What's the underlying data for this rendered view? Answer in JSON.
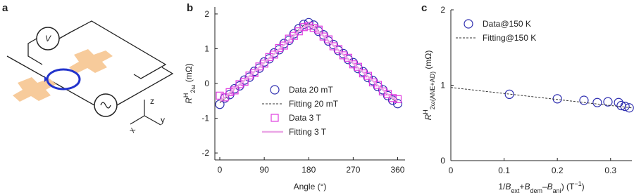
{
  "panel_a": {
    "label": "a",
    "meter_label": "V",
    "axes_labels": [
      "z",
      "y",
      "x"
    ]
  },
  "chart_data": [
    {
      "type": "scatter",
      "label": "b",
      "x_label": [
        {
          "text": "Angle (°)"
        }
      ],
      "y_label": [
        {
          "text": "R",
          "italic": true
        },
        {
          "text": "H",
          "sup": true
        },
        {
          "text": "2ω",
          "sub": true
        },
        {
          "text": "  (mΩ)"
        }
      ],
      "xlim": [
        -10,
        375
      ],
      "ylim": [
        -2.2,
        2.2
      ],
      "xticks": [
        0,
        90,
        180,
        270,
        360
      ],
      "yticks": [
        -2,
        -1,
        0,
        1,
        2
      ],
      "legend": "lower center",
      "x": [
        0,
        10,
        20,
        30,
        40,
        50,
        60,
        70,
        80,
        90,
        100,
        110,
        120,
        130,
        140,
        150,
        160,
        170,
        180,
        190,
        200,
        210,
        220,
        230,
        240,
        250,
        260,
        270,
        280,
        290,
        300,
        310,
        320,
        330,
        340,
        350,
        360
      ],
      "series": [
        {
          "name": "Data 20 mT",
          "color": "#2f2fb0",
          "marker": "circle",
          "values": [
            -0.6,
            -0.42,
            -0.32,
            -0.15,
            -0.07,
            0.1,
            0.18,
            0.35,
            0.44,
            0.62,
            0.71,
            0.88,
            0.97,
            1.15,
            1.24,
            1.43,
            1.58,
            1.7,
            1.75,
            1.68,
            1.5,
            1.4,
            1.22,
            1.12,
            0.95,
            0.86,
            0.69,
            0.6,
            0.43,
            0.34,
            0.17,
            0.08,
            -0.09,
            -0.18,
            -0.35,
            -0.48,
            -0.58
          ]
        },
        {
          "name": "Fitting 20 mT",
          "color": "#333333",
          "marker": "line",
          "dash": true,
          "values": [
            -0.55,
            -0.45,
            -0.3,
            -0.17,
            -0.05,
            0.08,
            0.2,
            0.33,
            0.46,
            0.6,
            0.73,
            0.86,
            0.99,
            1.12,
            1.26,
            1.4,
            1.55,
            1.68,
            1.72,
            1.66,
            1.52,
            1.38,
            1.24,
            1.1,
            0.97,
            0.84,
            0.71,
            0.58,
            0.45,
            0.32,
            0.19,
            0.06,
            -0.07,
            -0.2,
            -0.33,
            -0.45,
            -0.55
          ]
        },
        {
          "name": "Data 3 T",
          "color": "#e03ce0",
          "marker": "square",
          "values": [
            -0.35,
            -0.4,
            -0.25,
            -0.2,
            -0.02,
            0.05,
            0.23,
            0.3,
            0.49,
            0.57,
            0.76,
            0.83,
            1.02,
            1.09,
            1.29,
            1.37,
            1.5,
            1.62,
            1.66,
            1.6,
            1.55,
            1.35,
            1.27,
            1.07,
            0.99,
            0.81,
            0.74,
            0.55,
            0.48,
            0.29,
            0.22,
            0.03,
            -0.04,
            -0.23,
            -0.3,
            -0.42,
            -0.45
          ]
        },
        {
          "name": "Fitting 3 T",
          "color": "#eaa6e6",
          "marker": "line",
          "dash": false,
          "values": [
            -0.5,
            -0.41,
            -0.27,
            -0.15,
            -0.03,
            0.09,
            0.21,
            0.34,
            0.47,
            0.6,
            0.73,
            0.85,
            0.98,
            1.11,
            1.24,
            1.37,
            1.51,
            1.63,
            1.68,
            1.62,
            1.49,
            1.36,
            1.22,
            1.09,
            0.96,
            0.83,
            0.7,
            0.58,
            0.45,
            0.32,
            0.2,
            0.07,
            -0.06,
            -0.18,
            -0.31,
            -0.42,
            -0.5
          ]
        }
      ]
    },
    {
      "type": "scatter",
      "label": "c",
      "x_label": [
        {
          "text": "1/"
        },
        {
          "text": "B",
          "italic": true
        },
        {
          "text": "ext",
          "sub": true
        },
        {
          "text": "+"
        },
        {
          "text": "B",
          "italic": true
        },
        {
          "text": "dem",
          "sub": true
        },
        {
          "text": "–"
        },
        {
          "text": "B",
          "italic": true
        },
        {
          "text": "ani",
          "sub": true
        },
        {
          "text": ") (T"
        },
        {
          "text": "−1",
          "sup": true
        },
        {
          "text": ")"
        }
      ],
      "y_label": [
        {
          "text": "R",
          "italic": true
        },
        {
          "text": "H",
          "sup": true
        },
        {
          "text": "2ω(ANE+AD)",
          "sub": true
        },
        {
          "text": "  (mΩ)"
        }
      ],
      "xlim": [
        0,
        0.34
      ],
      "ylim": [
        0,
        2
      ],
      "xticks": [
        0,
        0.1,
        0.2,
        0.3
      ],
      "yticks": [
        0,
        1,
        2
      ],
      "legend": "upper left",
      "series": [
        {
          "name": "Data@150 K",
          "color": "#2f2fb0",
          "marker": "circle",
          "x": [
            0.11,
            0.2,
            0.25,
            0.275,
            0.295,
            0.315,
            0.32,
            0.327,
            0.335
          ],
          "values": [
            0.88,
            0.82,
            0.8,
            0.77,
            0.78,
            0.77,
            0.73,
            0.72,
            0.7
          ]
        },
        {
          "name": "Fitting@150 K",
          "color": "#333333",
          "marker": "line",
          "dash": true,
          "x": [
            0,
            0.34
          ],
          "values": [
            0.97,
            0.7
          ]
        }
      ]
    }
  ]
}
